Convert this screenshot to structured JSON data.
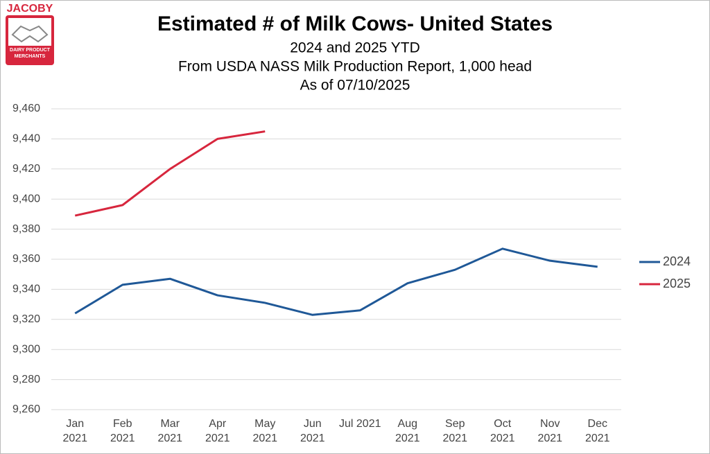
{
  "logo": {
    "name": "JACOBY",
    "tagline": "DAIRY PRODUCT MERCHANTS"
  },
  "chart_data": {
    "type": "line",
    "title": "Estimated # of Milk Cows- United States",
    "subtitle": [
      "2024 and 2025 YTD",
      "From USDA NASS Milk Production Report, 1,000 head",
      "As of 07/10/2025"
    ],
    "categories": [
      "Jan\n2021",
      "Feb\n2021",
      "Mar\n2021",
      "Apr\n2021",
      "May\n2021",
      "Jun\n2021",
      "Jul 2021",
      "Aug\n2021",
      "Sep\n2021",
      "Oct\n2021",
      "Nov\n2021",
      "Dec\n2021"
    ],
    "series": [
      {
        "name": "2024",
        "color": "#1f5897",
        "values": [
          9324,
          9343,
          9347,
          9336,
          9331,
          9323,
          9326,
          9344,
          9353,
          9367,
          9359,
          9355
        ]
      },
      {
        "name": "2025",
        "color": "#d7263d",
        "values": [
          9389,
          9396,
          9420,
          9440,
          9445,
          null,
          null,
          null,
          null,
          null,
          null,
          null
        ]
      }
    ],
    "ylim": [
      9260,
      9460
    ],
    "yticks": [
      {
        "value": 9260,
        "label": "9,260"
      },
      {
        "value": 9280,
        "label": "9,280"
      },
      {
        "value": 9300,
        "label": "9,300"
      },
      {
        "value": 9320,
        "label": "9,320"
      },
      {
        "value": 9340,
        "label": "9,340"
      },
      {
        "value": 9360,
        "label": "9,360"
      },
      {
        "value": 9380,
        "label": "9,380"
      },
      {
        "value": 9400,
        "label": "9,400"
      },
      {
        "value": 9420,
        "label": "9,420"
      },
      {
        "value": 9440,
        "label": "9,440"
      },
      {
        "value": 9460,
        "label": "9,460"
      }
    ],
    "grid": true,
    "legend": "right"
  }
}
